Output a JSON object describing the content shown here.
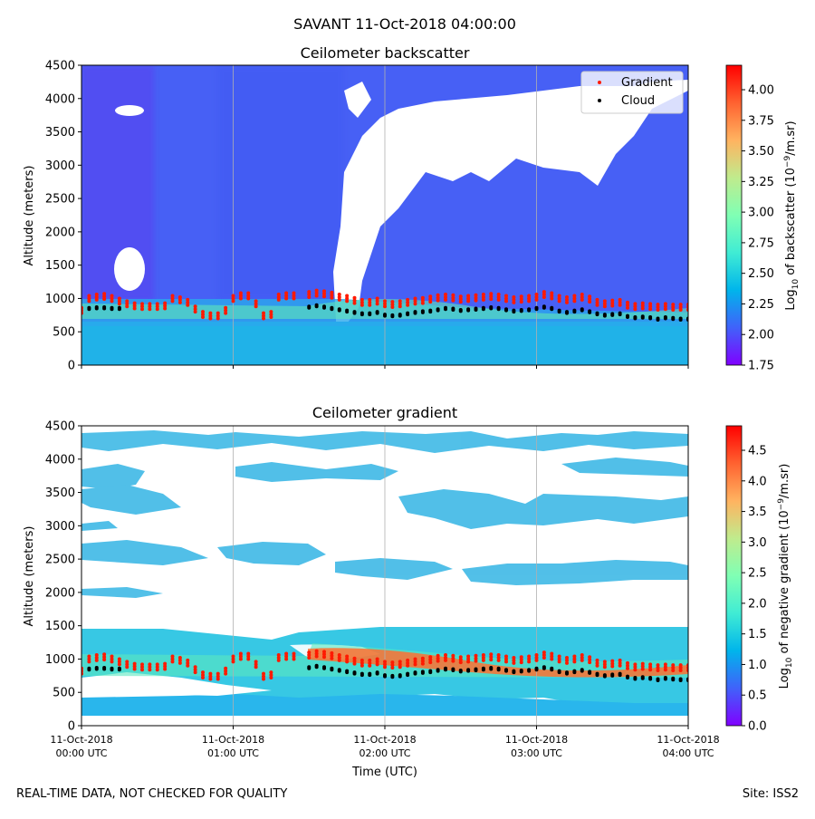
{
  "title": "SAVANT 11-Oct-2018 04:00:00",
  "footer": {
    "left": "REAL-TIME DATA, NOT CHECKED FOR QUALITY",
    "right": "Site: ISS2"
  },
  "colors": {
    "gradient_marker": "#ff1a00",
    "cloud_marker": "#000000"
  },
  "chart_data": [
    {
      "type": "heatmap",
      "title": "Ceilometer backscatter",
      "ylabel": "Altitude (meters)",
      "xlabel": "",
      "ylim": [
        0,
        4500
      ],
      "yticks": [
        0,
        500,
        1000,
        1500,
        2000,
        2500,
        3000,
        3500,
        4000,
        4500
      ],
      "xlim_hours": [
        0,
        4
      ],
      "colorbar": {
        "label": "Log10 of backscatter (10^-9/m.sr)",
        "range": [
          1.75,
          4.2
        ],
        "ticks": [
          "1.75",
          "2.00",
          "2.25",
          "2.50",
          "2.75",
          "3.00",
          "3.25",
          "3.50",
          "3.75",
          "4.00"
        ]
      },
      "legend": {
        "placement": "top-right",
        "entries": [
          "Gradient",
          "Cloud"
        ]
      },
      "gradient_series": {
        "name": "Gradient",
        "hours": [
          0.0,
          0.05,
          0.1,
          0.15,
          0.2,
          0.25,
          0.3,
          0.35,
          0.4,
          0.45,
          0.5,
          0.55,
          0.6,
          0.65,
          0.7,
          0.75,
          0.8,
          0.85,
          0.9,
          0.95,
          1.0,
          1.05,
          1.1,
          1.15,
          1.2,
          1.25,
          1.3,
          1.35,
          1.4,
          1.45,
          1.5,
          1.55,
          1.6,
          1.65,
          1.7,
          1.75,
          1.8,
          1.85,
          1.9,
          1.95,
          2.0,
          2.05,
          2.1,
          2.15,
          2.2,
          2.25,
          2.3,
          2.35,
          2.4,
          2.45,
          2.5,
          2.55,
          2.6,
          2.65,
          2.7,
          2.75,
          2.8,
          2.85,
          2.9,
          2.95,
          3.0,
          3.05,
          3.1,
          3.15,
          3.2,
          3.25,
          3.3,
          3.35,
          3.4,
          3.45,
          3.5,
          3.55,
          3.6,
          3.65,
          3.7,
          3.75,
          3.8,
          3.85,
          3.9,
          3.95,
          4.0
        ],
        "altitude": [
          780,
          960,
          980,
          990,
          960,
          920,
          880,
          850,
          840,
          840,
          840,
          850,
          960,
          940,
          900,
          800,
          720,
          700,
          700,
          780,
          960,
          1000,
          1000,
          880,
          700,
          720,
          980,
          1000,
          1000,
          null,
          1020,
          1040,
          1030,
          1010,
          980,
          960,
          930,
          900,
          900,
          920,
          880,
          870,
          880,
          900,
          920,
          930,
          950,
          970,
          980,
          970,
          950,
          960,
          970,
          980,
          990,
          980,
          960,
          940,
          950,
          960,
          980,
          1020,
          1000,
          960,
          940,
          960,
          980,
          950,
          900,
          880,
          890,
          900,
          860,
          840,
          850,
          840,
          830,
          840,
          830,
          830,
          830
        ]
      },
      "cloud_series": {
        "name": "Cloud",
        "hours": [
          0.0,
          0.05,
          0.1,
          0.15,
          0.2,
          0.25,
          0.3,
          0.35,
          0.4,
          0.45,
          0.5,
          0.55,
          0.6,
          0.65,
          0.7,
          0.75,
          0.8,
          0.85,
          0.9,
          0.95,
          1.0,
          1.05,
          1.1,
          1.15,
          1.2,
          1.25,
          1.3,
          1.35,
          1.4,
          1.45,
          1.5,
          1.55,
          1.6,
          1.65,
          1.7,
          1.75,
          1.8,
          1.85,
          1.9,
          1.95,
          2.0,
          2.05,
          2.1,
          2.15,
          2.2,
          2.25,
          2.3,
          2.35,
          2.4,
          2.45,
          2.5,
          2.55,
          2.6,
          2.65,
          2.7,
          2.75,
          2.8,
          2.85,
          2.9,
          2.95,
          3.0,
          3.05,
          3.1,
          3.15,
          3.2,
          3.25,
          3.3,
          3.35,
          3.4,
          3.45,
          3.5,
          3.55,
          3.6,
          3.65,
          3.7,
          3.75,
          3.8,
          3.85,
          3.9,
          3.95,
          4.0
        ],
        "altitude": [
          null,
          860,
          870,
          870,
          860,
          860,
          null,
          null,
          null,
          null,
          null,
          null,
          null,
          null,
          null,
          null,
          null,
          null,
          null,
          null,
          null,
          null,
          null,
          null,
          null,
          null,
          null,
          null,
          null,
          null,
          880,
          900,
          880,
          860,
          840,
          820,
          800,
          780,
          780,
          800,
          760,
          750,
          760,
          780,
          800,
          810,
          820,
          840,
          860,
          850,
          830,
          840,
          850,
          860,
          870,
          860,
          840,
          820,
          830,
          840,
          860,
          880,
          860,
          820,
          800,
          820,
          840,
          810,
          780,
          760,
          770,
          780,
          740,
          720,
          730,
          720,
          700,
          720,
          710,
          700,
          700
        ]
      }
    },
    {
      "type": "heatmap",
      "title": "Ceilometer gradient",
      "ylabel": "Altitude (meters)",
      "xlabel": "Time (UTC)",
      "ylim": [
        0,
        4500
      ],
      "yticks": [
        0,
        500,
        1000,
        1500,
        2000,
        2500,
        3000,
        3500,
        4000,
        4500
      ],
      "xticks": [
        {
          "date": "11-Oct-2018",
          "time": "00:00 UTC"
        },
        {
          "date": "11-Oct-2018",
          "time": "01:00 UTC"
        },
        {
          "date": "11-Oct-2018",
          "time": "02:00 UTC"
        },
        {
          "date": "11-Oct-2018",
          "time": "03:00 UTC"
        },
        {
          "date": "11-Oct-2018",
          "time": "04:00 UTC"
        }
      ],
      "colorbar": {
        "label": "Log10 of negative gradient (10^-9/m.sr)",
        "range": [
          0.0,
          4.9
        ],
        "ticks": [
          "0.0",
          "0.5",
          "1.0",
          "1.5",
          "2.0",
          "2.5",
          "3.0",
          "3.5",
          "4.0",
          "4.5"
        ]
      }
    }
  ]
}
